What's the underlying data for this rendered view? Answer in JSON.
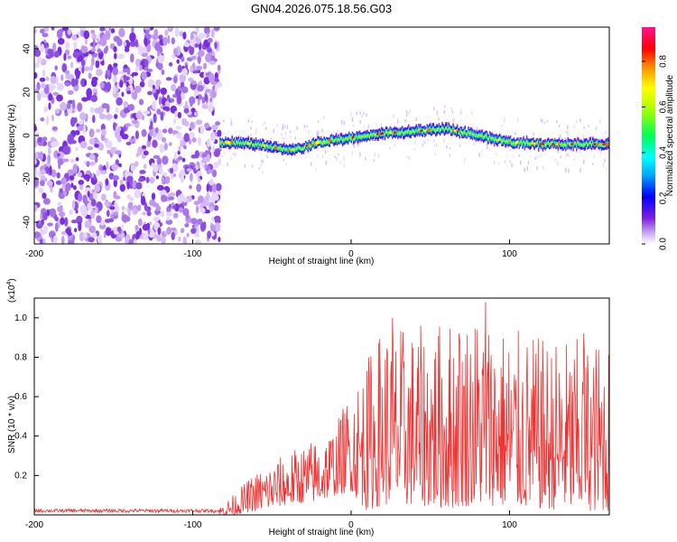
{
  "figure_title": "GN04.2026.075.18.56.G03",
  "chart_data": [
    {
      "type": "heatmap",
      "title": "",
      "xlabel": "Height of straight line (km)",
      "ylabel": "Frequency (Hz)",
      "xlim": [
        -200,
        163
      ],
      "ylim": [
        -50,
        50
      ],
      "xticks": [
        -200,
        -100,
        0,
        100
      ],
      "yticks": [
        -40,
        -20,
        0,
        20,
        40
      ],
      "noise_region_x": [
        -200,
        -83
      ],
      "signal_start_x": -83,
      "signal_centerline": {
        "x": [
          -83,
          -60,
          -45,
          -38,
          -20,
          0,
          20,
          40,
          60,
          80,
          100,
          120,
          140,
          163
        ],
        "freq": [
          -3,
          -4,
          -6,
          -7,
          -3,
          -1,
          1,
          2,
          3,
          0,
          -3,
          -4,
          -4,
          -4
        ]
      },
      "colorbar": {
        "label": "Normalized spectral amplitude",
        "range": [
          0.0,
          0.95
        ],
        "ticks": [
          "0.0",
          "0.2",
          "0.4",
          "0.6",
          "0.8"
        ],
        "colormap": [
          "#ff1493",
          "#ff0000",
          "#ff7f00",
          "#ffff00",
          "#00ff00",
          "#00ffff",
          "#0000ff",
          "#8a2be2",
          "#ffffff"
        ]
      }
    },
    {
      "type": "line",
      "title": "",
      "xlabel": "Height of straight line (km)",
      "ylabel": "SNR (10 * v/v)",
      "y_scale_label": "(x10",
      "y_scale_exponent": "4",
      "y_scale_suffix": ")",
      "xlim": [
        -200,
        163
      ],
      "ylim": [
        0,
        1.1
      ],
      "xticks": [
        -200,
        -100,
        0,
        100
      ],
      "yticks": [
        "0.2",
        "0.4",
        "0.6",
        "0.8",
        "1.0"
      ],
      "ytick_values": [
        0.2,
        0.4,
        0.6,
        0.8,
        1.0
      ],
      "series": [
        {
          "name": "SNR",
          "color": "#ee3333",
          "envelope": {
            "x": [
              -200,
              -83,
              -75,
              -60,
              -40,
              -20,
              -10,
              0,
              10,
              20,
              40,
              60,
              80,
              100,
              120,
              140,
              163
            ],
            "min": [
              0.0,
              0.0,
              0.0,
              0.02,
              0.05,
              0.07,
              0.1,
              0.12,
              0.02,
              0.05,
              0.05,
              0.03,
              0.05,
              0.04,
              0.03,
              0.02,
              0.02
            ],
            "max": [
              0.04,
              0.04,
              0.1,
              0.22,
              0.32,
              0.4,
              0.46,
              0.65,
              0.8,
              0.98,
              0.95,
              1.0,
              1.05,
              0.95,
              0.9,
              0.9,
              0.9
            ]
          },
          "peaks": [
            {
              "x": 26,
              "y": 1.0
            },
            {
              "x": 85,
              "y": 1.08
            },
            {
              "x": 68,
              "y": 0.92
            },
            {
              "x": 147,
              "y": 0.92
            },
            {
              "x": 10,
              "y": 0.73
            }
          ]
        }
      ]
    }
  ]
}
